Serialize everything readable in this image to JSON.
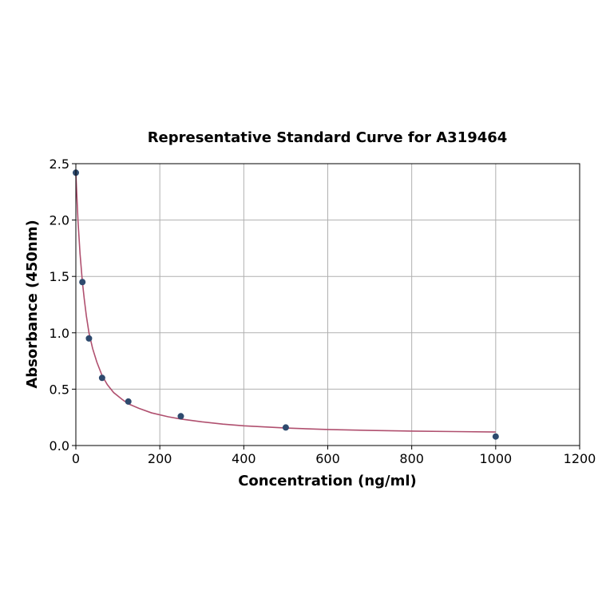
{
  "chart_data": {
    "type": "scatter",
    "title": "Representative Standard Curve for A319464",
    "xlabel": "Concentration (ng/ml)",
    "ylabel": "Absorbance (450nm)",
    "xlim": [
      0,
      1200
    ],
    "ylim": [
      0,
      2.5
    ],
    "xticks": [
      0,
      200,
      400,
      600,
      800,
      1000,
      1200
    ],
    "yticks": [
      0.0,
      0.5,
      1.0,
      1.5,
      2.0,
      2.5
    ],
    "xtick_labels": [
      "0",
      "200",
      "400",
      "600",
      "800",
      "1000",
      "1200"
    ],
    "ytick_labels": [
      "0.0",
      "0.5",
      "1.0",
      "1.5",
      "2.0",
      "2.5"
    ],
    "grid": true,
    "series": [
      {
        "kind": "points",
        "color": "#2e4a6e",
        "x": [
          0,
          15.6,
          31.25,
          62.5,
          125,
          250,
          500,
          1000
        ],
        "y": [
          2.42,
          1.45,
          0.95,
          0.6,
          0.39,
          0.26,
          0.16,
          0.08
        ]
      },
      {
        "kind": "fit-curve",
        "color": "#b0506f",
        "x": [
          0,
          5,
          10,
          15.6,
          20,
          25,
          31.25,
          40,
          50,
          62.5,
          75,
          90,
          110,
          125,
          150,
          180,
          220,
          250,
          300,
          350,
          400,
          500,
          600,
          700,
          800,
          900,
          1000
        ],
        "y": [
          2.42,
          2.0,
          1.7,
          1.45,
          1.3,
          1.15,
          1.0,
          0.86,
          0.74,
          0.62,
          0.54,
          0.47,
          0.41,
          0.37,
          0.33,
          0.29,
          0.255,
          0.235,
          0.21,
          0.19,
          0.175,
          0.155,
          0.142,
          0.134,
          0.128,
          0.124,
          0.12
        ]
      }
    ]
  }
}
